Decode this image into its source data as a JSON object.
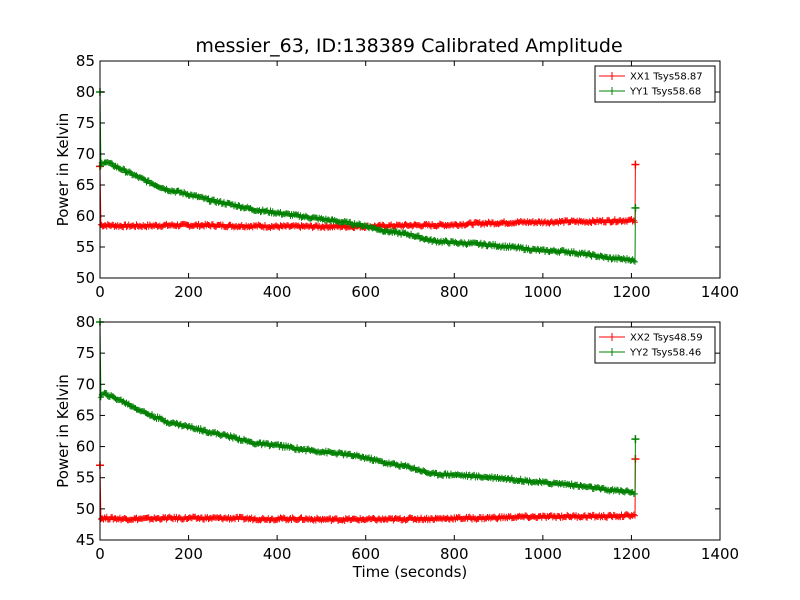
{
  "figure_title": "messier_63, ID:138389 Calibrated Amplitude",
  "colors": {
    "xx": "#ff0000",
    "yy": "#008000"
  },
  "chart_data": [
    {
      "type": "line",
      "xlabel": "",
      "ylabel": "Power in Kelvin",
      "xlim": [
        0,
        1400
      ],
      "ylim": [
        50,
        85
      ],
      "xticks": [
        0,
        200,
        400,
        600,
        800,
        1000,
        1200,
        1400
      ],
      "yticks": [
        50,
        55,
        60,
        65,
        70,
        75,
        80,
        85
      ],
      "legend_position": "top-right",
      "grid": false,
      "series": [
        {
          "name": "XX1 Tsys58.87",
          "color": "#ff0000",
          "x": [
            0,
            2,
            4,
            8,
            20,
            50,
            100,
            150,
            200,
            250,
            300,
            350,
            400,
            450,
            500,
            550,
            600,
            650,
            700,
            750,
            800,
            850,
            900,
            950,
            1000,
            1050,
            1100,
            1150,
            1190,
            1200,
            1208,
            1209
          ],
          "y": [
            68.0,
            58.6,
            58.5,
            58.5,
            58.5,
            58.4,
            58.4,
            58.5,
            58.5,
            58.5,
            58.4,
            58.4,
            58.3,
            58.3,
            58.3,
            58.3,
            58.3,
            58.4,
            58.5,
            58.5,
            58.6,
            58.8,
            58.9,
            59.0,
            59.0,
            59.1,
            59.1,
            59.2,
            59.3,
            59.3,
            59.0,
            68.3
          ]
        },
        {
          "name": "YY1 Tsys58.68",
          "color": "#008000",
          "x": [
            0,
            2,
            4,
            10,
            20,
            50,
            100,
            150,
            200,
            250,
            300,
            350,
            400,
            450,
            500,
            550,
            600,
            650,
            700,
            750,
            800,
            850,
            900,
            950,
            1000,
            1050,
            1100,
            1150,
            1190,
            1200,
            1208,
            1209
          ],
          "y": [
            80.0,
            68.0,
            68.5,
            68.8,
            68.5,
            67.5,
            65.8,
            64.3,
            63.5,
            62.5,
            61.8,
            61.0,
            60.5,
            60.0,
            59.5,
            59.0,
            58.4,
            57.5,
            57.0,
            56.0,
            55.7,
            55.5,
            55.2,
            54.8,
            54.4,
            54.3,
            53.8,
            53.2,
            53.0,
            53.0,
            52.6,
            61.3
          ]
        }
      ]
    },
    {
      "type": "line",
      "xlabel": "Time (seconds)",
      "ylabel": "Power in Kelvin",
      "xlim": [
        0,
        1400
      ],
      "ylim": [
        45,
        80
      ],
      "xticks": [
        0,
        200,
        400,
        600,
        800,
        1000,
        1200,
        1400
      ],
      "yticks": [
        45,
        50,
        55,
        60,
        65,
        70,
        75,
        80
      ],
      "legend_position": "top-right",
      "grid": false,
      "series": [
        {
          "name": "XX2 Tsys48.59",
          "color": "#ff0000",
          "x": [
            0,
            2,
            4,
            8,
            20,
            50,
            100,
            150,
            200,
            250,
            300,
            350,
            400,
            450,
            500,
            550,
            600,
            650,
            700,
            750,
            800,
            850,
            900,
            950,
            1000,
            1050,
            1100,
            1150,
            1190,
            1200,
            1208,
            1209
          ],
          "y": [
            57.0,
            48.6,
            48.5,
            48.5,
            48.5,
            48.4,
            48.4,
            48.5,
            48.5,
            48.5,
            48.5,
            48.4,
            48.4,
            48.4,
            48.3,
            48.3,
            48.3,
            48.3,
            48.4,
            48.4,
            48.5,
            48.5,
            48.6,
            48.7,
            48.7,
            48.8,
            48.8,
            48.8,
            48.9,
            49.0,
            48.9,
            58.0
          ]
        },
        {
          "name": "YY2 Tsys58.46",
          "color": "#008000",
          "x": [
            0,
            2,
            4,
            10,
            20,
            50,
            100,
            150,
            200,
            250,
            300,
            350,
            400,
            450,
            500,
            550,
            600,
            650,
            700,
            750,
            800,
            850,
            900,
            950,
            1000,
            1050,
            1100,
            1150,
            1190,
            1200,
            1208,
            1209
          ],
          "y": [
            80.0,
            68.0,
            68.2,
            68.5,
            68.2,
            67.3,
            65.5,
            64.0,
            63.2,
            62.3,
            61.5,
            60.5,
            60.2,
            59.6,
            59.2,
            58.8,
            58.2,
            57.3,
            56.7,
            55.6,
            55.5,
            55.2,
            55.0,
            54.6,
            54.2,
            54.0,
            53.5,
            53.0,
            52.8,
            52.8,
            52.4,
            61.2
          ]
        }
      ]
    }
  ]
}
